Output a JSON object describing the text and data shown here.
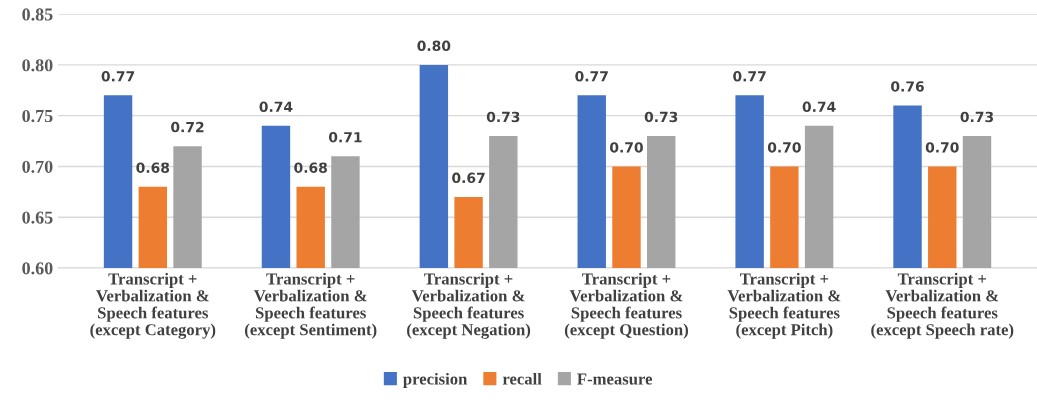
{
  "chart_data": {
    "type": "bar",
    "categories": [
      "Transcript +\nVerbalization &\nSpeech features\n(except Category)",
      "Transcript +\nVerbalization &\nSpeech features\n(except Sentiment)",
      "Transcript +\nVerbalization &\nSpeech features\n(except Negation)",
      "Transcript +\nVerbalization &\nSpeech features\n(except Question)",
      "Transcript +\nVerbalization &\nSpeech features\n(except Pitch)",
      "Transcript +\nVerbalization &\nSpeech features\n(except Speech rate)"
    ],
    "series": [
      {
        "name": "precision",
        "color": "#4472c4",
        "values": [
          0.77,
          0.74,
          0.8,
          0.77,
          0.77,
          0.76
        ],
        "value_labels": [
          "0.77",
          "0.74",
          "0.80",
          "0.77",
          "0.77",
          "0.76"
        ]
      },
      {
        "name": "recall",
        "color": "#ed7d31",
        "values": [
          0.68,
          0.68,
          0.67,
          0.7,
          0.7,
          0.7
        ],
        "value_labels": [
          "0.68",
          "0.68",
          "0.67",
          "0.70",
          "0.70",
          "0.70"
        ]
      },
      {
        "name": "F-measure",
        "color": "#a5a5a5",
        "values": [
          0.72,
          0.71,
          0.73,
          0.73,
          0.74,
          0.73
        ],
        "value_labels": [
          "0.72",
          "0.71",
          "0.73",
          "0.73",
          "0.74",
          "0.73"
        ]
      }
    ],
    "ylim": [
      0.6,
      0.85
    ],
    "yticks": [
      {
        "value": 0.6,
        "label": "0.60"
      },
      {
        "value": 0.65,
        "label": "0.65"
      },
      {
        "value": 0.7,
        "label": "0.70"
      },
      {
        "value": 0.75,
        "label": "0.75"
      },
      {
        "value": 0.8,
        "label": "0.80"
      },
      {
        "value": 0.85,
        "label": "0.85"
      }
    ],
    "grid": "y",
    "legend": "bottom"
  }
}
